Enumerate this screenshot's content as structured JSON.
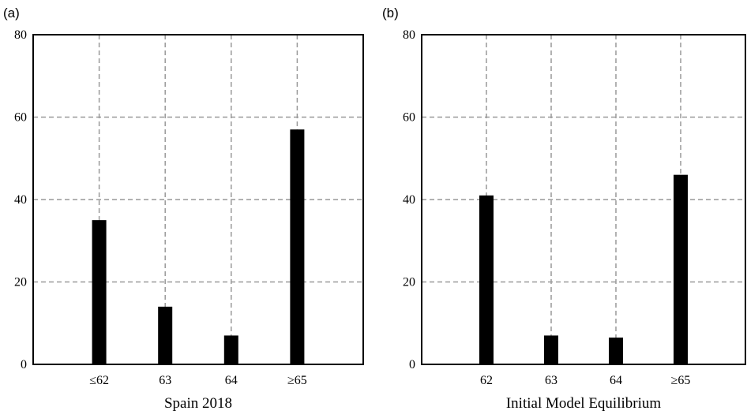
{
  "chart_data": [
    {
      "panel_label": "(a)",
      "type": "bar",
      "categories": [
        "≤62",
        "63",
        "64",
        "≥65"
      ],
      "values": [
        35,
        14,
        7,
        57
      ],
      "xlabel": "Spain 2018",
      "ylabel": "",
      "ylim": [
        0,
        80
      ],
      "yticks": [
        "0",
        "20",
        "40",
        "60",
        "80"
      ],
      "grid": true,
      "bar_color": "#000000",
      "grid_color": "#999999"
    },
    {
      "panel_label": "(b)",
      "type": "bar",
      "categories": [
        "62",
        "63",
        "64",
        "≥65"
      ],
      "values": [
        41,
        7,
        6.5,
        46
      ],
      "xlabel": "Initial Model Equilibrium",
      "ylabel": "",
      "ylim": [
        0,
        80
      ],
      "yticks": [
        "0",
        "20",
        "40",
        "60",
        "80"
      ],
      "grid": true,
      "bar_color": "#000000",
      "grid_color": "#999999"
    }
  ]
}
